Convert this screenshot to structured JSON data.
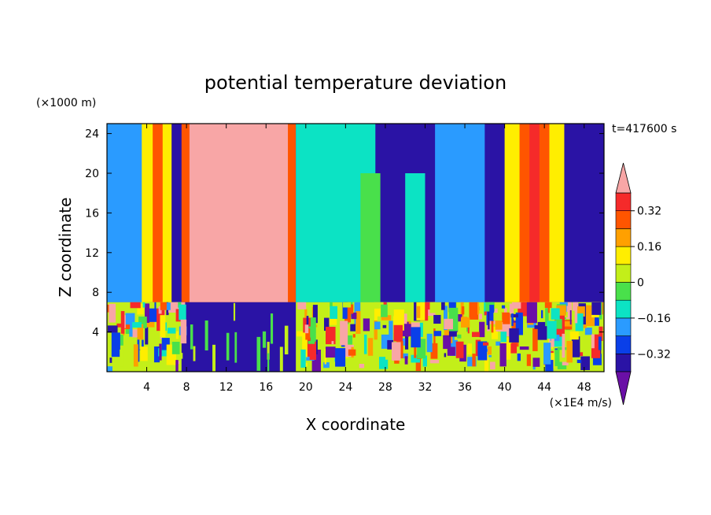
{
  "chart_data": {
    "type": "heatmap",
    "title": "potential temperature deviation",
    "xlabel": "X coordinate",
    "ylabel": "Z coordinate",
    "x_unit": "(×1E4 m/s)",
    "y_unit": "(×1000 m)",
    "time_label": "t=417600 s",
    "xlim": [
      0,
      50
    ],
    "ylim": [
      0,
      25
    ],
    "x_ticks": [
      4,
      8,
      12,
      16,
      20,
      24,
      28,
      32,
      36,
      40,
      44,
      48
    ],
    "y_ticks": [
      4,
      8,
      12,
      16,
      20,
      24
    ],
    "colorbar": {
      "levels": [
        -0.4,
        -0.32,
        -0.24,
        -0.16,
        -0.08,
        0,
        0.08,
        0.16,
        0.24,
        0.32,
        0.4
      ],
      "tick_labels": [
        "0.32",
        "0.16",
        "0",
        "−0.16",
        "−0.32"
      ],
      "tick_values": [
        0.32,
        0.16,
        0,
        -0.16,
        -0.32
      ],
      "colors": [
        "#6a0fa6",
        "#2a13a5",
        "#0a3fe8",
        "#2a9bff",
        "#0ce3c4",
        "#49e04b",
        "#c3ef19",
        "#ffee00",
        "#ffa000",
        "#ff5500",
        "#f52a2a",
        "#f8a6a6"
      ]
    },
    "regions": [
      {
        "x": [
          0,
          50
        ],
        "z": [
          7,
          25
        ],
        "value": -0.34
      },
      {
        "x": [
          0,
          50
        ],
        "z": [
          0,
          7
        ],
        "value": -0.4
      },
      {
        "x": [
          0,
          4
        ],
        "z": [
          7,
          25
        ],
        "value": -0.2
      },
      {
        "x": [
          3.5,
          6.5
        ],
        "z": [
          7,
          25
        ],
        "value": 0.1
      },
      {
        "x": [
          4.6,
          5.6
        ],
        "z": [
          7,
          25
        ],
        "value": 0.3
      },
      {
        "x": [
          7.5,
          19
        ],
        "z": [
          7,
          25
        ],
        "value": 0.3
      },
      {
        "x": [
          8.3,
          18.2
        ],
        "z": [
          7,
          25
        ],
        "value": 0.45
      },
      {
        "x": [
          19,
          27
        ],
        "z": [
          7,
          25
        ],
        "value": -0.16
      },
      {
        "x": [
          25.5,
          27.5
        ],
        "z": [
          7,
          20
        ],
        "value": -0.05
      },
      {
        "x": [
          30,
          32
        ],
        "z": [
          7,
          20
        ],
        "value": -0.16
      },
      {
        "x": [
          33,
          38
        ],
        "z": [
          7,
          25
        ],
        "value": -0.22
      },
      {
        "x": [
          40,
          46
        ],
        "z": [
          7,
          25
        ],
        "value": 0.1
      },
      {
        "x": [
          41.5,
          44.5
        ],
        "z": [
          7,
          25
        ],
        "value": 0.25
      },
      {
        "x": [
          42.5,
          43.5
        ],
        "z": [
          7,
          25
        ],
        "value": 0.35
      },
      {
        "x": [
          7.5,
          19
        ],
        "z": [
          0,
          7
        ],
        "value": -0.4
      },
      {
        "x": [
          0,
          7.5
        ],
        "z": [
          0,
          7
        ],
        "value": 0.05
      },
      {
        "x": [
          19,
          50
        ],
        "z": [
          0,
          7
        ],
        "value": 0.05
      }
    ]
  }
}
